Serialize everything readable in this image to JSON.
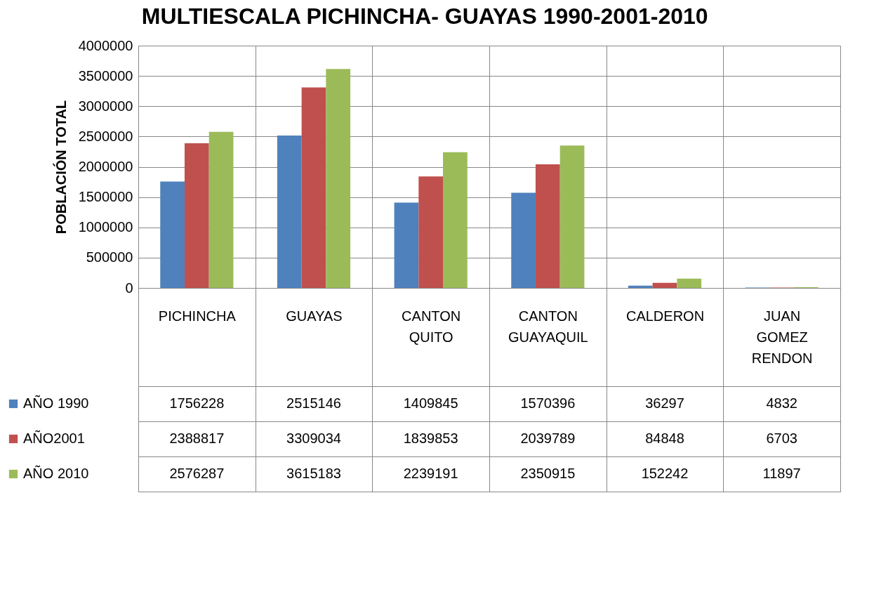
{
  "chart_data": {
    "type": "bar",
    "title": "MULTIESCALA PICHINCHA- GUAYAS 1990-2001-2010",
    "ylabel": "POBLACIÓN TOTAL",
    "categories": [
      "PICHINCHA",
      "GUAYAS",
      "CANTON QUITO",
      "CANTON GUAYAQUIL",
      "CALDERON",
      "JUAN GOMEZ RENDON"
    ],
    "series": [
      {
        "name": "AÑO 1990",
        "color": "#4f81bd",
        "values": [
          1756228,
          2515146,
          1409845,
          1570396,
          36297,
          4832
        ]
      },
      {
        "name": "AÑO2001",
        "color": "#c0504d",
        "values": [
          2388817,
          3309034,
          1839853,
          2039789,
          84848,
          6703
        ]
      },
      {
        "name": "AÑO 2010",
        "color": "#9bbb59",
        "values": [
          2576287,
          3615183,
          2239191,
          2350915,
          152242,
          11897
        ]
      }
    ],
    "ylim": [
      0,
      4000000
    ],
    "yticks": [
      0,
      500000,
      1000000,
      1500000,
      2000000,
      2500000,
      3000000,
      3500000,
      4000000
    ],
    "grid": "y",
    "legend": "bottom left",
    "data_labels": true
  }
}
